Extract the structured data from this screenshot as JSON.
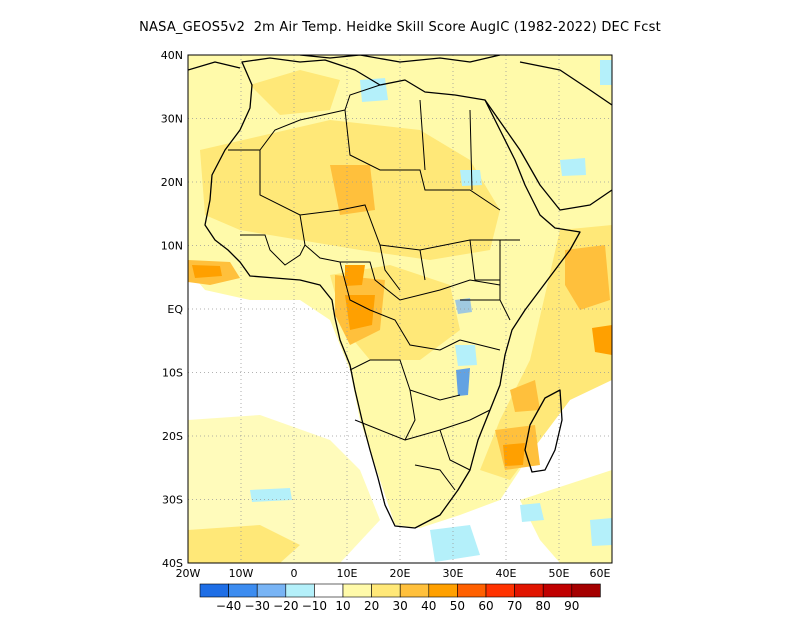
{
  "title": "NASA_GEOS5v2  2m Air Temp. Heidke Skill Score AugIC (1982-2022) DEC Fcst",
  "map": {
    "lat_labels": [
      "40N",
      "30N",
      "20N",
      "10N",
      "EQ",
      "10S",
      "20S",
      "30S",
      "40S"
    ],
    "lon_labels": [
      "20W",
      "10W",
      "0",
      "10E",
      "20E",
      "30E",
      "40E",
      "50E",
      "60E"
    ],
    "extent": {
      "lon_min": -20,
      "lon_max": 60,
      "lat_min": -40,
      "lat_max": 40
    },
    "grid": "dotted",
    "palette": {
      "-40": "#1e6ee6",
      "-30": "#3c8cf0",
      "-20": "#78b4f5",
      "-10": "#b4f0fa",
      "0": "#ffffff",
      "10": "#fffaaa",
      "20": "#ffe878",
      "30": "#ffc03c",
      "40": "#ffa000",
      "50": "#ff6000",
      "60": "#ff3200",
      "70": "#e11400",
      "80": "#c00000",
      "90": "#a50000"
    }
  },
  "colorbar": {
    "labels": [
      "-40",
      "-30",
      "-20",
      "-10",
      "10",
      "20",
      "30",
      "40",
      "50",
      "60",
      "70",
      "80",
      "90"
    ],
    "colors": [
      "#1e6ee6",
      "#3c8cf0",
      "#78b4f5",
      "#b4f0fa",
      "#ffffff",
      "#fffaaa",
      "#ffe878",
      "#ffc03c",
      "#ffa000",
      "#ff6000",
      "#ff3200",
      "#e11400",
      "#c00000",
      "#a50000"
    ]
  }
}
